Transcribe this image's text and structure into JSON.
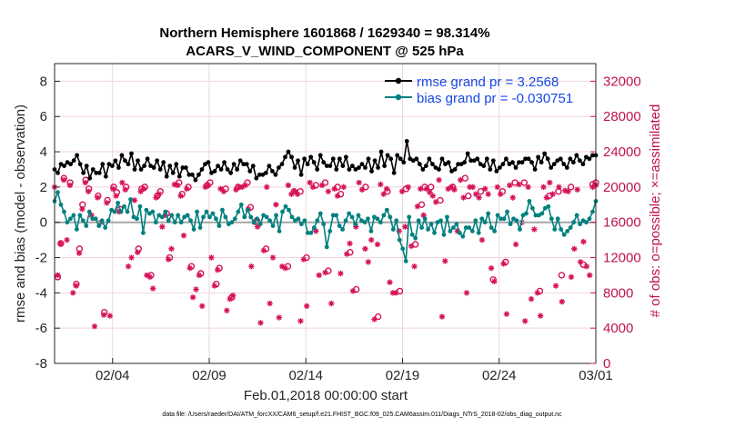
{
  "chart_data": {
    "type": "line",
    "title": [
      "Northern Hemisphere 1601868 / 1629340 = 98.314%",
      "ACARS_V_WIND_COMPONENT @ 525 hPa"
    ],
    "xlabel": "Feb.01,2018 00:00:00 start",
    "ylabel": "rmse and bias (model - observation)",
    "ylabel_right": "# of obs: o=possible; ×=assimilated",
    "footer": "data file: /Users/raeder/DAI/ATM_forcXX/CAM6_setup/f.e21.FHIST_BGC.f09_025.CAM6assim.011/Diags_NTrS_2018-02/obs_diag_output.nc",
    "x_range": [
      1.0,
      29.0
    ],
    "ylim": [
      -8,
      9
    ],
    "ylim_right": [
      0,
      34000
    ],
    "x_ticks": [
      {
        "value": 4,
        "label": "02/04"
      },
      {
        "value": 9,
        "label": "02/09"
      },
      {
        "value": 14,
        "label": "02/14"
      },
      {
        "value": 19,
        "label": "02/19"
      },
      {
        "value": 24,
        "label": "02/24"
      },
      {
        "value": 29,
        "label": "03/01"
      }
    ],
    "y_ticks": [
      -8,
      -6,
      -4,
      -2,
      0,
      2,
      4,
      6,
      8
    ],
    "y_ticks_right": [
      {
        "value": 0,
        "label": "0"
      },
      {
        "value": 4000,
        "label": "4000"
      },
      {
        "value": 8000,
        "label": "8000"
      },
      {
        "value": 12000,
        "label": "12000"
      },
      {
        "value": 16000,
        "label": "16000"
      },
      {
        "value": 20000,
        "label": "20000"
      },
      {
        "value": 24000,
        "label": "24000"
      },
      {
        "value": 28000,
        "label": "28000"
      },
      {
        "value": 32000,
        "label": "32000"
      }
    ],
    "grid": true,
    "legend_position": "top-right",
    "colors": {
      "rmse": "#000000",
      "bias": "#00807f",
      "obs": "#d6125a",
      "zero": "#a6a6a6",
      "legend_text": "#1747e6",
      "grid": "#f2d5d5"
    },
    "series": [
      {
        "name": "rmse grand pr = 3.2568",
        "axis": "left",
        "values": [
          3.0,
          2.8,
          3.3,
          3.2,
          3.4,
          3.3,
          3.5,
          3.8,
          3.3,
          2.8,
          3.2,
          2.5,
          3.0,
          2.8,
          2.8,
          3.3,
          2.6,
          3.3,
          3.2,
          3.5,
          3.1,
          3.8,
          3.5,
          3.3,
          3.9,
          3.0,
          3.5,
          3.0,
          3.2,
          3.6,
          3.2,
          3.1,
          3.5,
          3.0,
          3.4,
          2.6,
          3.2,
          2.8,
          3.3,
          2.6,
          3.1,
          3.1,
          2.7,
          2.7,
          2.4,
          2.7,
          3.0,
          3.3,
          3.4,
          2.8,
          2.9,
          3.2,
          3.0,
          3.4,
          3.0,
          2.8,
          3.3,
          3.0,
          3.5,
          3.3,
          3.3,
          2.9,
          3.2,
          2.5,
          2.7,
          2.7,
          2.8,
          3.2,
          2.9,
          2.7,
          3.1,
          3.3,
          3.7,
          4.0,
          3.7,
          3.1,
          3.5,
          2.7,
          3.6,
          3.3,
          3.7,
          3.4,
          3.0,
          3.8,
          3.4,
          3.2,
          3.2,
          3.6,
          3.0,
          3.6,
          3.2,
          3.7,
          3.0,
          3.2,
          3.0,
          3.1,
          3.3,
          3.1,
          3.6,
          2.9,
          3.5,
          3.1,
          4.0,
          3.2,
          3.8,
          3.6,
          2.8,
          3.8,
          3.6,
          3.4,
          4.6,
          3.6,
          3.5,
          3.6,
          3.3,
          3.0,
          3.2,
          3.6,
          3.3,
          3.1,
          3.0,
          3.6,
          3.3,
          3.4,
          2.9,
          3.0,
          3.3,
          3.3,
          3.4,
          3.9,
          3.5,
          3.5,
          3.6,
          3.3,
          3.2,
          3.6,
          3.0,
          3.5,
          2.9,
          3.1,
          3.3,
          3.6,
          3.3,
          3.4,
          3.1,
          3.4,
          3.4,
          3.6,
          3.6,
          3.4,
          3.0,
          3.7,
          3.4,
          3.9,
          3.6,
          3.1,
          3.3,
          3.5,
          3.6,
          3.3,
          3.1,
          3.6,
          3.4,
          3.8,
          3.5,
          3.3,
          3.7,
          3.6,
          3.8,
          3.8
        ]
      },
      {
        "name": "bias grand pr = -0.030751",
        "axis": "left",
        "values": [
          1.2,
          1.7,
          1.0,
          0.6,
          0.0,
          0.2,
          0.4,
          -0.4,
          0.4,
          0.1,
          -0.2,
          0.6,
          0.2,
          0.2,
          -0.2,
          0.1,
          -0.3,
          0.1,
          0.7,
          0.6,
          1.1,
          0.6,
          0.9,
          0.6,
          1.3,
          0.3,
          0.2,
          0.9,
          -0.6,
          0.7,
          0.5,
          0.6,
          0.0,
          0.4,
          0.3,
          0.6,
          0.1,
          0.4,
          0.0,
          0.4,
          0.0,
          0.3,
          0.4,
          0.1,
          -0.4,
          0.6,
          -0.3,
          0.3,
          0.6,
          0.3,
          0.5,
          0.2,
          -0.2,
          0.7,
          0.3,
          -0.1,
          0.0,
          0.2,
          0.6,
          1.0,
          0.3,
          0.7,
          0.3,
          0.0,
          0.2,
          -0.1,
          0.4,
          0.3,
          0.1,
          -0.2,
          0.4,
          -0.5,
          0.6,
          0.9,
          0.7,
          0.3,
          0.1,
          0.2,
          -0.1,
          0.1,
          -0.6,
          -0.6,
          -0.3,
          0.1,
          0.5,
          -0.1,
          -1.4,
          -0.5,
          0.4,
          0.4,
          -0.2,
          -0.4,
          0.1,
          0.5,
          0.3,
          -0.1,
          0.4,
          0.1,
          0.0,
          0.2,
          -0.5,
          0.3,
          0.2,
          0.0,
          0.4,
          0.7,
          0.3,
          -0.4,
          0.1,
          -1.0,
          -1.5,
          -2.2,
          0.3,
          -0.7,
          -0.9,
          0.1,
          -0.3,
          0.2,
          -0.4,
          -0.1,
          -0.6,
          0.0,
          0.1,
          -0.7,
          0.3,
          -0.5,
          -0.3,
          -0.1,
          -0.6,
          -0.8,
          -0.3,
          -0.3,
          -0.5,
          0.1,
          -0.6,
          0.2,
          0.0,
          0.5,
          -0.3,
          -0.5,
          0.4,
          0.2,
          0.2,
          0.6,
          -0.1,
          0.2,
          0.1,
          -0.4,
          0.4,
          0.5,
          1.2,
          0.8,
          0.4,
          0.4,
          0.5,
          0.8,
          0.9,
          0.2,
          -0.4,
          0.2,
          -0.4,
          -0.7,
          -0.5,
          -0.3,
          0.0,
          0.4,
          -0.1,
          0.1,
          0.0,
          0.2,
          0.6,
          1.2
        ]
      },
      {
        "name": "possible",
        "axis": "right",
        "marker": "o",
        "values": [
          null,
          9800,
          13600,
          21000,
          null,
          20500,
          null,
          9000,
          13000,
          18000,
          20800,
          19800,
          null,
          null,
          19000,
          null,
          5800,
          18500,
          null,
          20000,
          19400,
          17500,
          null,
          20000,
          null,
          null,
          null,
          13000,
          19800,
          20000,
          null,
          10000,
          null,
          19000,
          19500,
          null,
          17000,
          12000,
          null,
          null,
          20500,
          19200,
          null,
          20000,
          11000,
          null,
          null,
          10200,
          null,
          20200,
          20500,
          null,
          9000,
          10800,
          null,
          19800,
          null,
          7500,
          null,
          20000,
          null,
          null,
          20500,
          17700,
          null,
          16200,
          null,
          null,
          13000,
          null,
          null,
          null,
          null,
          null,
          null,
          11000,
          null,
          19500,
          null,
          19500,
          null,
          12000,
          null,
          null,
          20200,
          null,
          null,
          20500,
          10500,
          null,
          null,
          20000,
          19200,
          null,
          null,
          12600,
          null,
          8400,
          null,
          null,
          20000,
          null,
          null,
          null,
          5300,
          null,
          null,
          19500,
          null,
          null,
          null,
          8200,
          null,
          19800,
          null,
          null,
          13500,
          null,
          18000,
          20000,
          null,
          20000,
          null,
          null,
          18500,
          null,
          null,
          null,
          20000,
          null,
          null,
          null,
          21000,
          19000,
          null,
          null,
          null,
          19500,
          null,
          null,
          null,
          9500,
          null,
          null,
          19500,
          11500,
          null,
          null,
          20500,
          null,
          null,
          20500,
          null,
          null,
          null,
          null,
          8200,
          null,
          null,
          19000,
          null,
          null,
          19500,
          10000,
          null,
          null,
          20000,
          null,
          null,
          null,
          11200,
          null,
          null,
          20300,
          20500
        ]
      },
      {
        "name": "assimilated",
        "axis": "right",
        "marker": "x",
        "values": [
          20000,
          10000,
          13600,
          20800,
          14000,
          20200,
          8000,
          8800,
          12500,
          17500,
          20500,
          19500,
          16800,
          4200,
          18800,
          16000,
          5500,
          18200,
          5400,
          19800,
          19000,
          17200,
          20500,
          19700,
          11000,
          12000,
          18500,
          12600,
          19500,
          19800,
          10000,
          9800,
          8500,
          18800,
          19200,
          15500,
          16800,
          11800,
          13000,
          20300,
          20200,
          19000,
          14500,
          19800,
          10800,
          7500,
          8400,
          10000,
          6500,
          20000,
          20200,
          12000,
          8800,
          10600,
          19800,
          19500,
          6000,
          7300,
          7700,
          19700,
          20000,
          20000,
          20200,
          17500,
          11000,
          16000,
          15500,
          4600,
          12800,
          20000,
          6800,
          12000,
          18000,
          5200,
          11000,
          10800,
          20200,
          19200,
          19500,
          19200,
          4800,
          11800,
          6500,
          20500,
          20000,
          15000,
          10000,
          20200,
          10300,
          19500,
          6800,
          19800,
          19000,
          10200,
          20000,
          12400,
          13600,
          8200,
          15500,
          20500,
          19700,
          13000,
          11500,
          14000,
          5000,
          13500,
          20300,
          19200,
          19800,
          9200,
          8000,
          8000,
          15000,
          19500,
          15500,
          20000,
          13300,
          11000,
          17800,
          19800,
          16800,
          19800,
          19400,
          19000,
          18300,
          20800,
          5300,
          11600,
          19800,
          20000,
          19700,
          15000,
          20800,
          18800,
          8000,
          20000,
          20000,
          19200,
          18800,
          14000,
          19800,
          19200,
          10800,
          9300,
          20000,
          19200,
          11300,
          5600,
          20200,
          18800,
          13500,
          20300,
          16000,
          4800,
          20000,
          7300,
          15200,
          8000,
          5400,
          20000,
          18800,
          20500,
          19200,
          8800,
          20000,
          7000,
          19600,
          19500,
          9800,
          13000,
          19700,
          11500,
          13800,
          11000,
          10000,
          20000,
          20200
        ]
      }
    ]
  }
}
